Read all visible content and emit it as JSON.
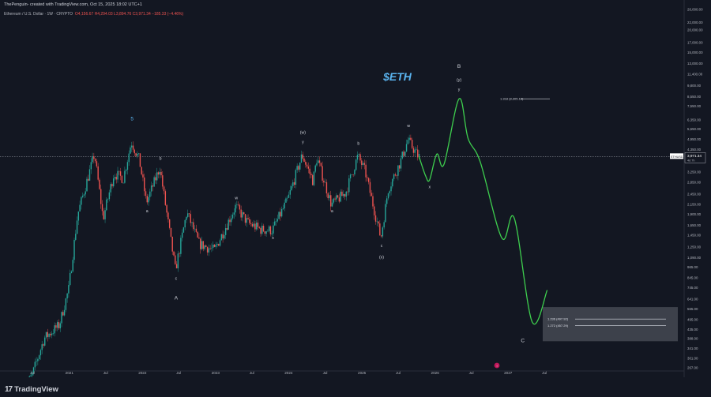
{
  "header": {
    "author_line": "ThePenguin- created with TradingView.com, Oct 15, 2025 18:02 UTC+1",
    "symbol_line": "Ethereum / U.S. Dollar · 1W · CRYPTO",
    "ohlc": "O4,156.67  H4,294.03  L3,894.76  C3,971.34  −185.33 (−4.46%)"
  },
  "footer": {
    "brand": "TradingView"
  },
  "chart_data": {
    "type": "candlestick",
    "title": "$ETH",
    "y_scale": "log",
    "y_ticks": [
      267,
      301,
      341,
      388,
      435,
      495,
      565,
      641,
      745,
      845,
      965,
      1090,
      1250,
      1450,
      1650,
      1900,
      2150,
      2450,
      2850,
      3250,
      3750,
      4350,
      4950,
      5650,
      6350,
      7550,
      8550,
      9800,
      11400,
      13000,
      15000,
      17000,
      20000,
      22000,
      26000
    ],
    "y_tick_labels": [
      "267.00",
      "301.00",
      "341.00",
      "388.00",
      "435.00",
      "495.00",
      "565.00",
      "641.00",
      "745.00",
      "845.00",
      "965.00",
      "1,090.00",
      "1,250.00",
      "1,450.00",
      "1,650.00",
      "1,900.00",
      "2,150.00",
      "2,450.00",
      "2,850.00",
      "3,250.00",
      "3,750.00",
      "4,350.00",
      "4,950.00",
      "5,650.00",
      "6,350.00",
      "7,550.00",
      "8,550.00",
      "9,800.00",
      "11,400.00",
      "13,000.00",
      "15,000.00",
      "17,000.00",
      "20,000.00",
      "22,000.00",
      "26,000.00"
    ],
    "x_axis_labels": [
      "Jul",
      "2021",
      "Jul",
      "2022",
      "Jul",
      "2023",
      "Jul",
      "2024",
      "Jul",
      "2025",
      "Jul",
      "2026",
      "Jul",
      "2027",
      "Jul"
    ],
    "x_axis_dates": [
      "2020-07-01",
      "2021-01-01",
      "2021-07-01",
      "2022-01-01",
      "2022-07-01",
      "2023-01-01",
      "2023-07-01",
      "2024-01-01",
      "2024-07-01",
      "2025-01-01",
      "2025-07-01",
      "2026-01-01",
      "2026-07-01",
      "2027-01-01",
      "2027-07-01"
    ],
    "current_price": 3971.34,
    "current_price_label": "3,971.34",
    "price_tag_symbol": "ETHUSD",
    "price_tag_countdown": "4d 7h",
    "price_history": [
      {
        "date": "2020-05-15",
        "price": 200
      },
      {
        "date": "2020-07-01",
        "price": 240
      },
      {
        "date": "2020-09-01",
        "price": 390
      },
      {
        "date": "2020-11-15",
        "price": 460
      },
      {
        "date": "2021-01-01",
        "price": 730
      },
      {
        "date": "2021-02-15",
        "price": 1900
      },
      {
        "date": "2021-05-10",
        "price": 4100
      },
      {
        "date": "2021-06-22",
        "price": 1800
      },
      {
        "date": "2021-08-15",
        "price": 3200
      },
      {
        "date": "2021-10-01",
        "price": 3000
      },
      {
        "date": "2021-11-10",
        "price": 4800
      },
      {
        "date": "2021-12-20",
        "price": 3800
      },
      {
        "date": "2022-01-24",
        "price": 2200
      },
      {
        "date": "2022-04-01",
        "price": 3450
      },
      {
        "date": "2022-06-18",
        "price": 930
      },
      {
        "date": "2022-08-14",
        "price": 1950
      },
      {
        "date": "2022-10-15",
        "price": 1300
      },
      {
        "date": "2022-12-30",
        "price": 1200
      },
      {
        "date": "2023-04-15",
        "price": 2100
      },
      {
        "date": "2023-06-15",
        "price": 1700
      },
      {
        "date": "2023-08-20",
        "price": 1560
      },
      {
        "date": "2023-10-15",
        "price": 1550
      },
      {
        "date": "2024-01-01",
        "price": 2300
      },
      {
        "date": "2024-03-12",
        "price": 4050
      },
      {
        "date": "2024-05-05",
        "price": 2900
      },
      {
        "date": "2024-05-25",
        "price": 3900
      },
      {
        "date": "2024-08-05",
        "price": 2150
      },
      {
        "date": "2024-10-15",
        "price": 2500
      },
      {
        "date": "2024-12-15",
        "price": 4000
      },
      {
        "date": "2025-01-20",
        "price": 3300
      },
      {
        "date": "2025-04-09",
        "price": 1400
      },
      {
        "date": "2025-05-15",
        "price": 2600
      },
      {
        "date": "2025-07-15",
        "price": 3700
      },
      {
        "date": "2025-08-22",
        "price": 4900
      },
      {
        "date": "2025-10-13",
        "price": 3971
      }
    ],
    "projection": [
      {
        "date": "2025-10-13",
        "price": 3971
      },
      {
        "date": "2025-11-15",
        "price": 3100
      },
      {
        "date": "2025-12-05",
        "price": 2950
      },
      {
        "date": "2026-01-10",
        "price": 4100
      },
      {
        "date": "2026-02-15",
        "price": 3600
      },
      {
        "date": "2026-05-01",
        "price": 8300
      },
      {
        "date": "2026-06-15",
        "price": 5000
      },
      {
        "date": "2026-08-15",
        "price": 3700
      },
      {
        "date": "2026-12-01",
        "price": 1400
      },
      {
        "date": "2027-02-01",
        "price": 1800
      },
      {
        "date": "2027-05-01",
        "price": 480
      },
      {
        "date": "2027-07-15",
        "price": 720
      }
    ],
    "wave_labels": [
      {
        "text": "5",
        "date": "2021-11-10",
        "price": 6300
      },
      {
        "text": "a",
        "date": "2022-01-24",
        "price": 1950
      },
      {
        "text": "b",
        "date": "2022-04-01",
        "price": 3800
      },
      {
        "text": "c",
        "date": "2022-06-18",
        "price": 820
      },
      {
        "text": "A",
        "date": "2022-06-18",
        "price": 640
      },
      {
        "text": "w",
        "date": "2023-04-15",
        "price": 2300
      },
      {
        "text": "x",
        "date": "2023-10-15",
        "price": 1380
      },
      {
        "text": "(w)",
        "date": "2024-03-12",
        "price": 5300
      },
      {
        "text": "y",
        "date": "2024-03-12",
        "price": 4700
      },
      {
        "text": "a",
        "date": "2024-08-05",
        "price": 1950
      },
      {
        "text": "b",
        "date": "2024-12-15",
        "price": 4600
      },
      {
        "text": "c",
        "date": "2025-04-09",
        "price": 1250
      },
      {
        "text": "(x)",
        "date": "2025-04-09",
        "price": 1080
      },
      {
        "text": "w",
        "date": "2025-08-22",
        "price": 5800
      },
      {
        "text": "x",
        "date": "2025-12-05",
        "price": 2650
      },
      {
        "text": "B",
        "date": "2026-05-01",
        "price": 12300
      },
      {
        "text": "(y)",
        "date": "2026-05-01",
        "price": 10400
      },
      {
        "text": "y",
        "date": "2026-05-01",
        "price": 9200
      },
      {
        "text": "C",
        "date": "2027-03-15",
        "price": 370
      }
    ],
    "fib_levels": [
      {
        "label": "1.318 (8,305.10)",
        "value": 8305.1
      },
      {
        "label": "1.236 (497.92)",
        "value": 497.92
      },
      {
        "label": "1.272 (457.29)",
        "value": 457.29
      }
    ],
    "colors": {
      "background": "#131722",
      "up": "#26a69a",
      "down": "#ef5350",
      "projection": "#3ecf4e",
      "label": "#d1d4dc",
      "title": "#5ab4f0"
    }
  }
}
